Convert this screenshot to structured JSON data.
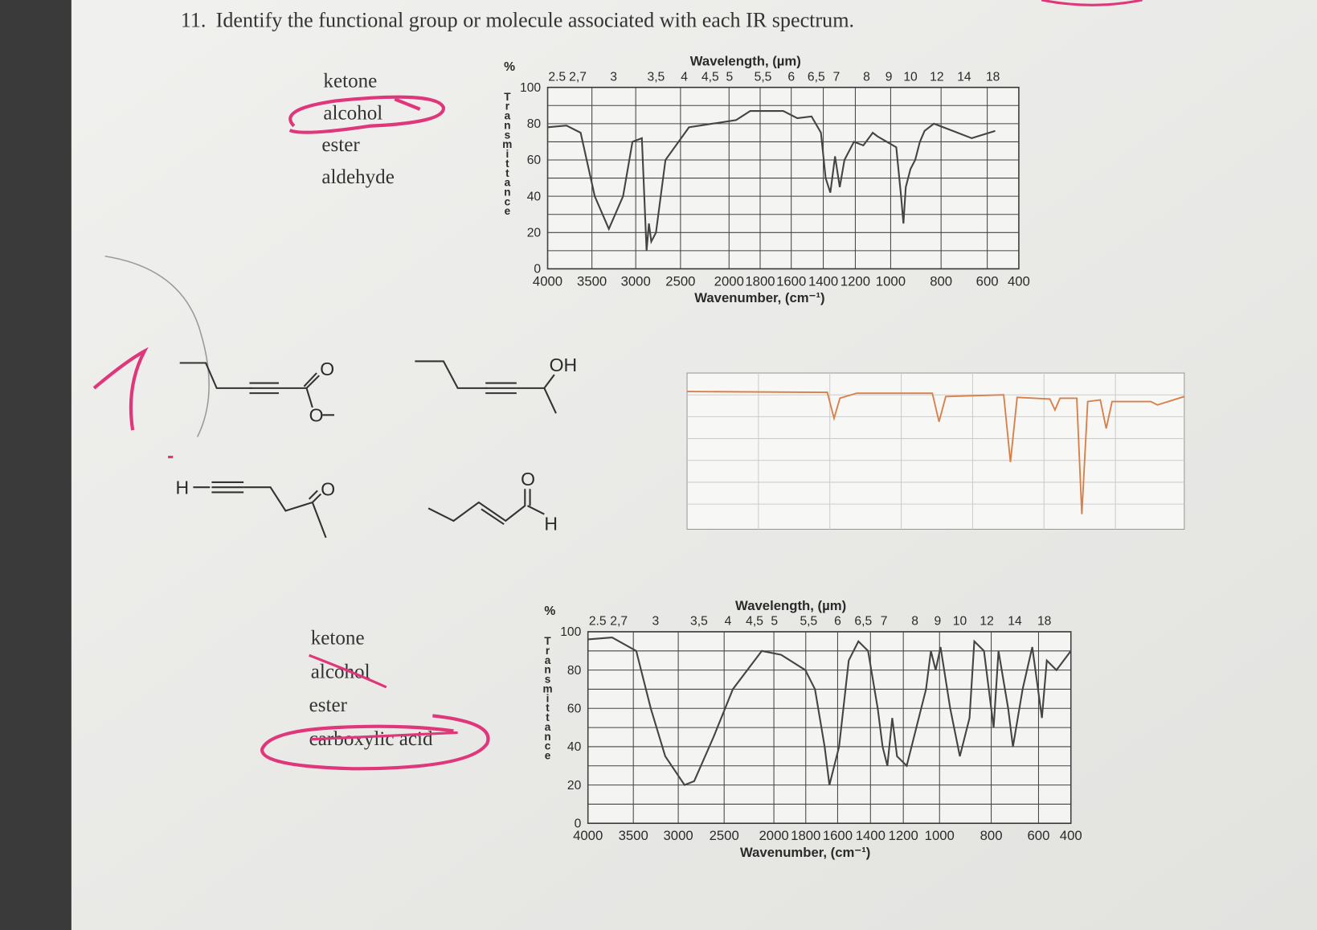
{
  "question": {
    "number": "11.",
    "text": "Identify the functional group or molecule associated with each IR spectrum."
  },
  "choices_1": [
    "ketone",
    "alcohol",
    "ester",
    "aldehyde"
  ],
  "choices_2": [
    "ketone",
    "alcohol",
    "ester",
    "carboxylic acid"
  ],
  "molecules": {
    "ester": [
      "O",
      "O"
    ],
    "alcohol": [
      "OH"
    ],
    "ketone": [
      "H",
      "O"
    ],
    "aldehyde": [
      "O",
      "H"
    ]
  },
  "spectrum_1": {
    "percent": "%",
    "y_label": "Transmittance",
    "wavelength_label": "Wavelength, (µm)",
    "wavelength_ticks": [
      "2.5",
      "2,7",
      "3",
      "3,5",
      "4",
      "4,5",
      "5",
      "5,5",
      "6",
      "6,5",
      "7",
      "8",
      "9",
      "10",
      "12",
      "14",
      "18"
    ],
    "y_ticks": [
      "100",
      "80",
      "60",
      "40",
      "20",
      "0"
    ],
    "x_ticks": [
      "4000",
      "3500",
      "3000",
      "2500",
      "2000",
      "1800",
      "1600",
      "1400",
      "1200",
      "1000",
      "800",
      "600",
      "400"
    ],
    "x_label": "Wavenumber, (cm⁻¹)"
  },
  "spectrum_2": {
    "percent": "%",
    "y_label": "Transmittance",
    "wavelength_label": "Wavelength, (µm)",
    "wavelength_ticks": [
      "2.5",
      "2,7",
      "3",
      "3,5",
      "4",
      "4,5",
      "5",
      "5,5",
      "6",
      "6,5",
      "7",
      "8",
      "9",
      "10",
      "12",
      "14",
      "18"
    ],
    "y_ticks": [
      "100",
      "80",
      "60",
      "40",
      "20",
      "0"
    ],
    "x_ticks": [
      "4000",
      "3500",
      "3000",
      "2500",
      "2000",
      "1800",
      "1600",
      "1400",
      "1200",
      "1000",
      "800",
      "600",
      "400"
    ],
    "x_label": "Wavenumber, (cm⁻¹)"
  }
}
